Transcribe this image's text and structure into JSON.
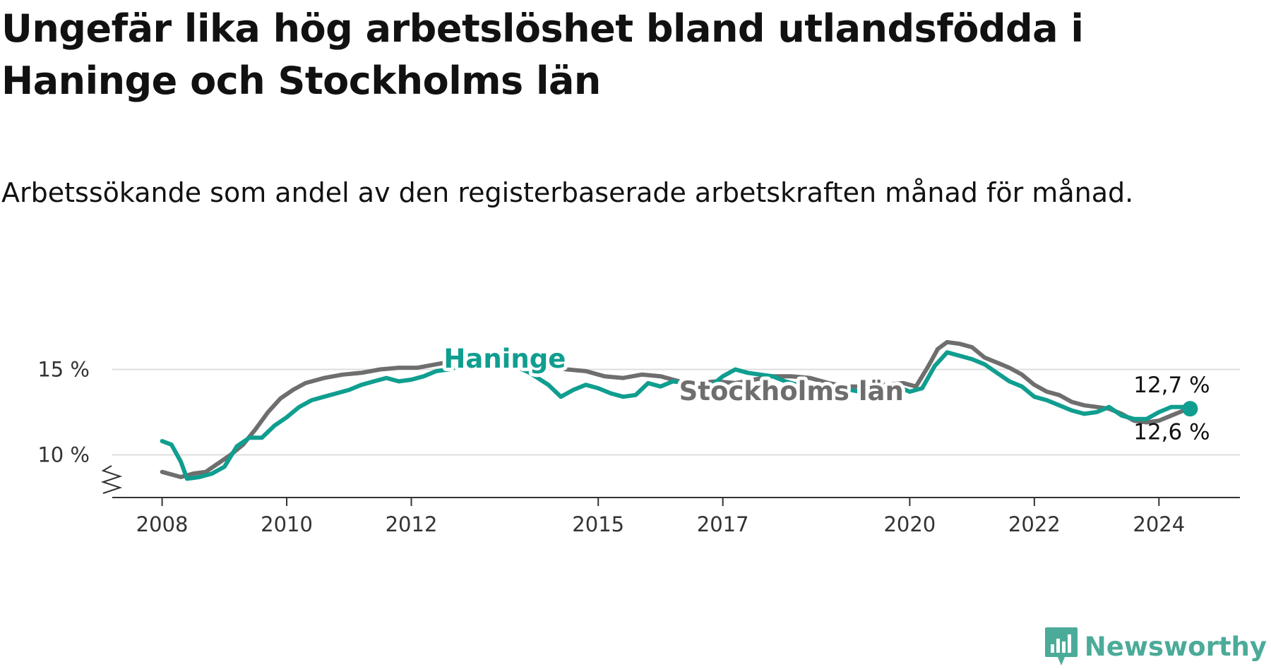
{
  "title": "Ungefär lika hög arbetslöshet bland utlandsfödda i Haninge och Stockholms län",
  "subtitle": "Arbetssökande som andel av den registerbaserade arbetskraften månad för månad.",
  "brand": "Newsworthy",
  "colors": {
    "haninge": "#0f9e8f",
    "stockholm": "#6e6e6e",
    "grid": "#dddddd",
    "axis": "#333333",
    "brand": "#4bab99"
  },
  "chart_data": {
    "type": "line",
    "y_ticks": [
      {
        "value": 10,
        "label": "10 %"
      },
      {
        "value": 15,
        "label": "15 %"
      }
    ],
    "x_ticks": [
      {
        "value": 2008,
        "label": "2008"
      },
      {
        "value": 2010,
        "label": "2010"
      },
      {
        "value": 2012,
        "label": "2012"
      },
      {
        "value": 2015,
        "label": "2015"
      },
      {
        "value": 2017,
        "label": "2017"
      },
      {
        "value": 2020,
        "label": "2020"
      },
      {
        "value": 2022,
        "label": "2022"
      },
      {
        "value": 2024,
        "label": "2024"
      }
    ],
    "xlim": [
      2007.2,
      2025.3
    ],
    "ylim": [
      7.5,
      17.5
    ],
    "grid": "horizontal",
    "axis_break": true,
    "series": [
      {
        "name": "Stockholms län",
        "label_year": 2018.1,
        "label_value": 13.2,
        "end_label": "12,6 %",
        "points": [
          [
            2008.0,
            9.0
          ],
          [
            2008.3,
            8.7
          ],
          [
            2008.5,
            8.9
          ],
          [
            2008.7,
            9.0
          ],
          [
            2008.9,
            9.5
          ],
          [
            2009.1,
            10.0
          ],
          [
            2009.3,
            10.6
          ],
          [
            2009.5,
            11.5
          ],
          [
            2009.7,
            12.5
          ],
          [
            2009.9,
            13.3
          ],
          [
            2010.1,
            13.8
          ],
          [
            2010.3,
            14.2
          ],
          [
            2010.6,
            14.5
          ],
          [
            2010.9,
            14.7
          ],
          [
            2011.2,
            14.8
          ],
          [
            2011.5,
            15.0
          ],
          [
            2011.8,
            15.1
          ],
          [
            2012.1,
            15.1
          ],
          [
            2012.4,
            15.3
          ],
          [
            2012.7,
            15.5
          ],
          [
            2013.0,
            15.6
          ],
          [
            2013.3,
            15.6
          ],
          [
            2013.6,
            15.6
          ],
          [
            2013.9,
            15.6
          ],
          [
            2014.2,
            15.2
          ],
          [
            2014.5,
            15.0
          ],
          [
            2014.8,
            14.9
          ],
          [
            2015.1,
            14.6
          ],
          [
            2015.4,
            14.5
          ],
          [
            2015.7,
            14.7
          ],
          [
            2016.0,
            14.6
          ],
          [
            2016.3,
            14.3
          ],
          [
            2016.6,
            14.2
          ],
          [
            2016.9,
            14.3
          ],
          [
            2017.2,
            14.2
          ],
          [
            2017.5,
            14.4
          ],
          [
            2017.8,
            14.6
          ],
          [
            2018.1,
            14.6
          ],
          [
            2018.4,
            14.5
          ],
          [
            2018.7,
            14.2
          ],
          [
            2019.0,
            14.0
          ],
          [
            2019.3,
            14.0
          ],
          [
            2019.6,
            14.1
          ],
          [
            2019.9,
            14.2
          ],
          [
            2020.1,
            14.0
          ],
          [
            2020.3,
            15.2
          ],
          [
            2020.45,
            16.2
          ],
          [
            2020.6,
            16.6
          ],
          [
            2020.8,
            16.5
          ],
          [
            2021.0,
            16.3
          ],
          [
            2021.2,
            15.7
          ],
          [
            2021.4,
            15.4
          ],
          [
            2021.6,
            15.1
          ],
          [
            2021.8,
            14.7
          ],
          [
            2022.0,
            14.1
          ],
          [
            2022.2,
            13.7
          ],
          [
            2022.4,
            13.5
          ],
          [
            2022.6,
            13.1
          ],
          [
            2022.8,
            12.9
          ],
          [
            2023.0,
            12.8
          ],
          [
            2023.2,
            12.7
          ],
          [
            2023.4,
            12.4
          ],
          [
            2023.6,
            12.0
          ],
          [
            2023.8,
            11.9
          ],
          [
            2024.0,
            12.0
          ],
          [
            2024.2,
            12.3
          ],
          [
            2024.4,
            12.6
          ],
          [
            2024.5,
            12.6
          ]
        ]
      },
      {
        "name": "Haninge",
        "label_year": 2013.5,
        "label_value": 15.1,
        "end_label": "12,7 %",
        "points": [
          [
            2008.0,
            10.8
          ],
          [
            2008.15,
            10.6
          ],
          [
            2008.3,
            9.6
          ],
          [
            2008.4,
            8.6
          ],
          [
            2008.6,
            8.7
          ],
          [
            2008.8,
            8.9
          ],
          [
            2009.0,
            9.3
          ],
          [
            2009.2,
            10.5
          ],
          [
            2009.4,
            11.0
          ],
          [
            2009.6,
            11.0
          ],
          [
            2009.8,
            11.7
          ],
          [
            2010.0,
            12.2
          ],
          [
            2010.2,
            12.8
          ],
          [
            2010.4,
            13.2
          ],
          [
            2010.6,
            13.4
          ],
          [
            2010.8,
            13.6
          ],
          [
            2011.0,
            13.8
          ],
          [
            2011.2,
            14.1
          ],
          [
            2011.4,
            14.3
          ],
          [
            2011.6,
            14.5
          ],
          [
            2011.8,
            14.3
          ],
          [
            2012.0,
            14.4
          ],
          [
            2012.2,
            14.6
          ],
          [
            2012.4,
            14.9
          ],
          [
            2012.6,
            15.0
          ],
          [
            2012.8,
            15.2
          ],
          [
            2013.0,
            15.3
          ],
          [
            2013.3,
            15.4
          ],
          [
            2013.6,
            15.3
          ],
          [
            2013.9,
            14.8
          ],
          [
            2014.2,
            14.1
          ],
          [
            2014.4,
            13.4
          ],
          [
            2014.6,
            13.8
          ],
          [
            2014.8,
            14.1
          ],
          [
            2015.0,
            13.9
          ],
          [
            2015.2,
            13.6
          ],
          [
            2015.4,
            13.4
          ],
          [
            2015.6,
            13.5
          ],
          [
            2015.8,
            14.2
          ],
          [
            2016.0,
            14.0
          ],
          [
            2016.2,
            14.3
          ],
          [
            2016.4,
            14.2
          ],
          [
            2016.6,
            14.1
          ],
          [
            2016.8,
            14.0
          ],
          [
            2017.0,
            14.6
          ],
          [
            2017.2,
            15.0
          ],
          [
            2017.4,
            14.8
          ],
          [
            2017.6,
            14.7
          ],
          [
            2017.8,
            14.6
          ],
          [
            2018.0,
            14.3
          ],
          [
            2018.3,
            14.0
          ],
          [
            2018.6,
            13.8
          ],
          [
            2018.9,
            13.9
          ],
          [
            2019.2,
            13.7
          ],
          [
            2019.5,
            13.7
          ],
          [
            2019.8,
            14.0
          ],
          [
            2020.0,
            13.7
          ],
          [
            2020.2,
            13.9
          ],
          [
            2020.4,
            15.2
          ],
          [
            2020.6,
            16.0
          ],
          [
            2020.8,
            15.8
          ],
          [
            2021.0,
            15.6
          ],
          [
            2021.2,
            15.3
          ],
          [
            2021.4,
            14.8
          ],
          [
            2021.6,
            14.3
          ],
          [
            2021.8,
            14.0
          ],
          [
            2022.0,
            13.4
          ],
          [
            2022.2,
            13.2
          ],
          [
            2022.4,
            12.9
          ],
          [
            2022.6,
            12.6
          ],
          [
            2022.8,
            12.4
          ],
          [
            2023.0,
            12.5
          ],
          [
            2023.2,
            12.8
          ],
          [
            2023.4,
            12.3
          ],
          [
            2023.6,
            12.1
          ],
          [
            2023.8,
            12.1
          ],
          [
            2024.0,
            12.5
          ],
          [
            2024.2,
            12.8
          ],
          [
            2024.4,
            12.8
          ],
          [
            2024.5,
            12.7
          ]
        ]
      }
    ]
  }
}
